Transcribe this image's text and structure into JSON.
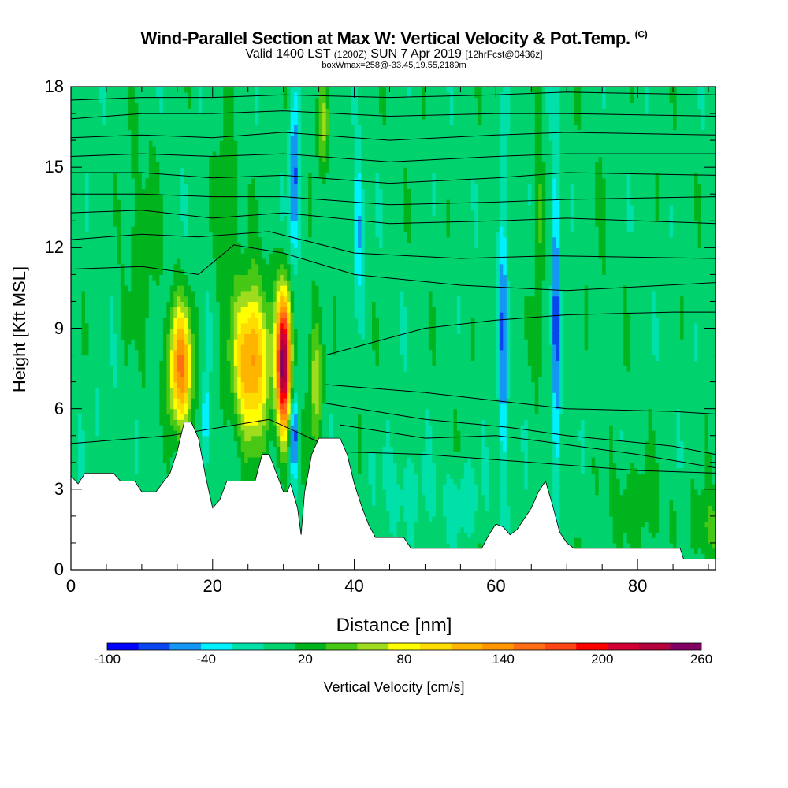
{
  "title": {
    "main": "Wind-Parallel Section at Max W: Vertical Velocity & Pot.Temp.",
    "copyright": "(C)",
    "valid_prefix": "Valid 1400 LST",
    "valid_utc": "(1200Z)",
    "valid_date": "SUN 7 Apr 2019",
    "forecast": "[12hrFcst@0436z]",
    "box_info": "boxWmax=258@-33.45,19.55,2189m"
  },
  "chart_data": {
    "type": "heatmap",
    "xlabel": "Distance [nm]",
    "ylabel": "Height [Kft MSL]",
    "xlim": [
      0,
      91
    ],
    "ylim": [
      0,
      18
    ],
    "x_ticks": [
      "0",
      "20",
      "40",
      "60",
      "80"
    ],
    "x_tick_values": [
      0,
      20,
      40,
      60,
      80
    ],
    "y_ticks": [
      "0",
      "3",
      "6",
      "9",
      "12",
      "15",
      "18"
    ],
    "y_tick_values": [
      0,
      3,
      6,
      9,
      12,
      15,
      18
    ],
    "colorbar": {
      "title": "Vertical Velocity [cm/s]",
      "labels": [
        "-100",
        "-40",
        "20",
        "80",
        "140",
        "200",
        "260"
      ],
      "label_values": [
        -100,
        -40,
        20,
        80,
        140,
        200,
        260
      ],
      "levels": [
        -100,
        -80,
        -60,
        -40,
        -20,
        0,
        20,
        40,
        60,
        80,
        100,
        120,
        140,
        160,
        180,
        200,
        220,
        240,
        260
      ],
      "colors": [
        "#0000ff",
        "#0a46f0",
        "#1496f5",
        "#00f0ff",
        "#00e1aa",
        "#00d26e",
        "#00b41e",
        "#46c814",
        "#a0dc1e",
        "#ffff00",
        "#ffdc00",
        "#ffb400",
        "#ff9600",
        "#ff6e14",
        "#ff4614",
        "#ff0000",
        "#d20032",
        "#b4003c",
        "#820064"
      ]
    },
    "terrain_kft": [
      [
        0,
        3.5
      ],
      [
        1,
        3.2
      ],
      [
        2,
        3.6
      ],
      [
        6,
        3.6
      ],
      [
        7,
        3.3
      ],
      [
        9,
        3.3
      ],
      [
        10,
        2.9
      ],
      [
        12,
        2.9
      ],
      [
        14,
        3.6
      ],
      [
        15,
        4.4
      ],
      [
        16,
        5.5
      ],
      [
        17,
        5.5
      ],
      [
        18,
        4.9
      ],
      [
        19,
        3.5
      ],
      [
        20,
        2.3
      ],
      [
        21,
        2.6
      ],
      [
        22,
        3.3
      ],
      [
        26,
        3.3
      ],
      [
        27,
        4.3
      ],
      [
        28,
        4.3
      ],
      [
        29,
        3.6
      ],
      [
        30,
        2.9
      ],
      [
        30.5,
        2.9
      ],
      [
        31,
        3.2
      ],
      [
        32,
        2.3
      ],
      [
        32.5,
        1.3
      ],
      [
        33,
        2.9
      ],
      [
        34,
        4.3
      ],
      [
        35,
        4.9
      ],
      [
        38,
        4.9
      ],
      [
        39,
        4.3
      ],
      [
        40,
        3.2
      ],
      [
        41,
        2.4
      ],
      [
        42,
        1.7
      ],
      [
        43,
        1.2
      ],
      [
        47,
        1.2
      ],
      [
        48,
        0.8
      ],
      [
        58,
        0.8
      ],
      [
        59,
        1.3
      ],
      [
        60,
        1.7
      ],
      [
        61,
        1.6
      ],
      [
        62,
        1.3
      ],
      [
        63,
        1.5
      ],
      [
        64,
        1.9
      ],
      [
        65,
        2.3
      ],
      [
        66,
        2.9
      ],
      [
        67,
        3.3
      ],
      [
        68,
        2.4
      ],
      [
        69,
        1.4
      ],
      [
        70,
        1.0
      ],
      [
        71,
        0.8
      ],
      [
        86,
        0.8
      ],
      [
        86.5,
        0.4
      ],
      [
        91,
        0.4
      ]
    ],
    "w_features": [
      {
        "x": 15.5,
        "y": 7.5,
        "wx": 1.6,
        "wy": 2.3,
        "w": 150
      },
      {
        "x": 25.5,
        "y": 7.8,
        "wx": 2.6,
        "wy": 2.8,
        "w": 140
      },
      {
        "x": 30.0,
        "y": 7.7,
        "wx": 1.0,
        "wy": 2.6,
        "w": 258
      },
      {
        "x": 34.5,
        "y": 7.0,
        "wx": 1.0,
        "wy": 2.5,
        "w": 60
      },
      {
        "x": 35.5,
        "y": 16.5,
        "wx": 0.8,
        "wy": 1.8,
        "w": 55
      },
      {
        "x": 19.0,
        "y": 5.5,
        "wx": 0.5,
        "wy": 1.8,
        "w": -60
      },
      {
        "x": 31.5,
        "y": 5.0,
        "wx": 0.6,
        "wy": 1.5,
        "w": -90
      },
      {
        "x": 31.5,
        "y": 14.5,
        "wx": 0.7,
        "wy": 3.0,
        "w": -80
      },
      {
        "x": 40.5,
        "y": 12.8,
        "wx": 0.7,
        "wy": 2.5,
        "w": -60
      },
      {
        "x": 61.0,
        "y": 9.0,
        "wx": 0.6,
        "wy": 6.0,
        "w": -70
      },
      {
        "x": 68.5,
        "y": 9.0,
        "wx": 0.5,
        "wy": 7.0,
        "w": -80
      },
      {
        "x": 66.0,
        "y": 12.0,
        "wx": 0.6,
        "wy": 6.0,
        "w": 35
      },
      {
        "x": 22.0,
        "y": 14.0,
        "wx": 1.5,
        "wy": 3.0,
        "w": 30
      },
      {
        "x": 47.0,
        "y": 3.0,
        "wx": 3.5,
        "wy": 1.5,
        "w": -20
      },
      {
        "x": 55.0,
        "y": 2.5,
        "wx": 3.0,
        "wy": 1.2,
        "w": -25
      },
      {
        "x": 10.0,
        "y": 12.0,
        "wx": 2.5,
        "wy": 4.0,
        "w": 22
      },
      {
        "x": 80.0,
        "y": 2.5,
        "wx": 4.0,
        "wy": 1.5,
        "w": 25
      },
      {
        "x": 90.0,
        "y": 1.5,
        "wx": 2.0,
        "wy": 1.5,
        "w": 35
      },
      {
        "x": 75.0,
        "y": 12.0,
        "wx": 3.0,
        "wy": 5.0,
        "w": 5
      },
      {
        "x": 5.0,
        "y": 5.0,
        "wx": 2.5,
        "wy": 3.0,
        "w": -8
      }
    ],
    "theta_contours_kft": [
      [
        [
          0,
          4.7
        ],
        [
          14,
          5.0
        ],
        [
          28,
          5.6
        ],
        [
          38,
          4.4
        ],
        [
          50,
          4.3
        ],
        [
          65,
          4.0
        ],
        [
          80,
          3.7
        ],
        [
          91,
          3.6
        ]
      ],
      [
        [
          38,
          5.4
        ],
        [
          50,
          4.9
        ],
        [
          60,
          5.0
        ],
        [
          66,
          4.8
        ],
        [
          80,
          4.3
        ],
        [
          91,
          3.8
        ]
      ],
      [
        [
          36,
          6.2
        ],
        [
          50,
          5.6
        ],
        [
          62,
          5.3
        ],
        [
          70,
          5.0
        ],
        [
          85,
          4.6
        ],
        [
          91,
          4.3
        ]
      ],
      [
        [
          36,
          6.9
        ],
        [
          50,
          6.6
        ],
        [
          60,
          6.3
        ],
        [
          70,
          6.0
        ],
        [
          85,
          5.9
        ],
        [
          91,
          5.8
        ]
      ],
      [
        [
          36,
          8.0
        ],
        [
          50,
          9.0
        ],
        [
          60,
          9.3
        ],
        [
          70,
          9.5
        ],
        [
          85,
          9.6
        ],
        [
          91,
          9.6
        ]
      ],
      [
        [
          0,
          11.2
        ],
        [
          10,
          11.3
        ],
        [
          18,
          11.0
        ],
        [
          23,
          12.1
        ],
        [
          30,
          11.8
        ],
        [
          40,
          11.0
        ],
        [
          55,
          10.6
        ],
        [
          70,
          10.4
        ],
        [
          91,
          10.7
        ]
      ],
      [
        [
          0,
          12.3
        ],
        [
          10,
          12.5
        ],
        [
          18,
          12.4
        ],
        [
          28,
          12.6
        ],
        [
          40,
          11.8
        ],
        [
          55,
          11.6
        ],
        [
          68,
          11.7
        ],
        [
          91,
          11.6
        ]
      ],
      [
        [
          0,
          13.3
        ],
        [
          10,
          13.4
        ],
        [
          20,
          13.1
        ],
        [
          30,
          13.3
        ],
        [
          45,
          12.9
        ],
        [
          60,
          13.0
        ],
        [
          70,
          13.1
        ],
        [
          91,
          12.9
        ]
      ],
      [
        [
          0,
          14.0
        ],
        [
          10,
          14.0
        ],
        [
          20,
          13.9
        ],
        [
          30,
          13.9
        ],
        [
          45,
          13.6
        ],
        [
          60,
          13.7
        ],
        [
          70,
          13.8
        ],
        [
          91,
          13.9
        ]
      ],
      [
        [
          0,
          14.8
        ],
        [
          10,
          14.8
        ],
        [
          20,
          14.6
        ],
        [
          30,
          14.7
        ],
        [
          45,
          14.4
        ],
        [
          60,
          14.6
        ],
        [
          70,
          14.8
        ],
        [
          91,
          14.7
        ]
      ],
      [
        [
          0,
          15.4
        ],
        [
          10,
          15.5
        ],
        [
          20,
          15.4
        ],
        [
          30,
          15.5
        ],
        [
          45,
          15.2
        ],
        [
          60,
          15.4
        ],
        [
          70,
          15.5
        ],
        [
          91,
          15.5
        ]
      ],
      [
        [
          0,
          16.1
        ],
        [
          10,
          16.2
        ],
        [
          20,
          16.1
        ],
        [
          30,
          16.3
        ],
        [
          45,
          16.0
        ],
        [
          60,
          16.2
        ],
        [
          70,
          16.3
        ],
        [
          91,
          16.2
        ]
      ],
      [
        [
          0,
          16.8
        ],
        [
          10,
          17.0
        ],
        [
          20,
          17.0
        ],
        [
          30,
          17.1
        ],
        [
          45,
          16.9
        ],
        [
          60,
          17.0
        ],
        [
          70,
          17.0
        ],
        [
          91,
          16.9
        ]
      ],
      [
        [
          0,
          17.5
        ],
        [
          10,
          17.6
        ],
        [
          20,
          17.6
        ],
        [
          30,
          17.7
        ],
        [
          45,
          17.6
        ],
        [
          60,
          17.7
        ],
        [
          70,
          17.8
        ],
        [
          91,
          17.7
        ]
      ]
    ]
  }
}
